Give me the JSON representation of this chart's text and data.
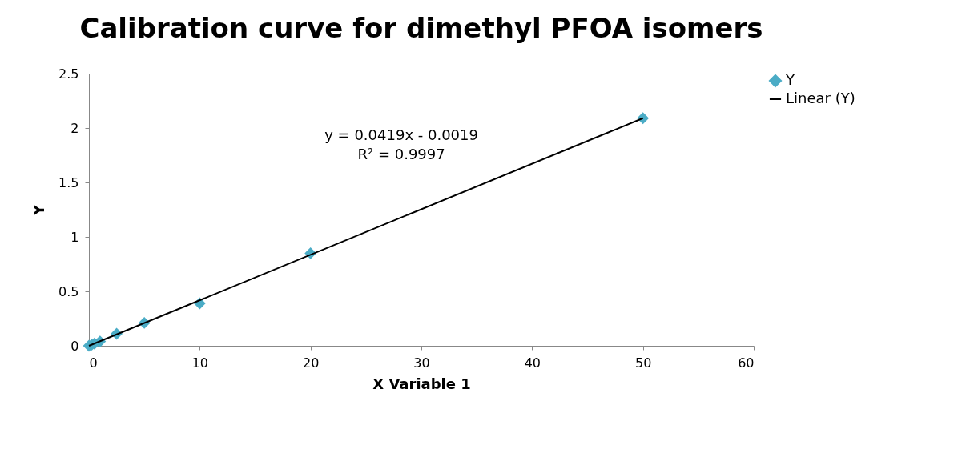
{
  "chart_data": {
    "type": "scatter",
    "title": "Calibration curve for dimethyl PFOA isomers",
    "xlabel": "X Variable 1",
    "ylabel": "Y",
    "xlim": [
      0,
      60
    ],
    "xticks": [
      0,
      10,
      20,
      30,
      40,
      50,
      60
    ],
    "ylim": [
      0,
      2.5
    ],
    "yticks": [
      0,
      0.5,
      1,
      1.5,
      2,
      2.5
    ],
    "grid": false,
    "legend": "right",
    "annotations": [
      "y = 0.0419x - 0.0019",
      "R² = 0.9997"
    ],
    "series": [
      {
        "name": "Y",
        "marker": "diamond",
        "color": "#4bacc6",
        "x": [
          0,
          0.25,
          0.5,
          1,
          2.5,
          5,
          10,
          20,
          50
        ],
        "values": [
          0,
          0.01,
          0.02,
          0.04,
          0.11,
          0.21,
          0.39,
          0.85,
          2.09
        ]
      },
      {
        "name": "Linear (Y)",
        "type": "line",
        "line_style": "solid",
        "color": "#000000",
        "x": [
          0,
          50
        ],
        "values": [
          0,
          2.09
        ]
      }
    ]
  }
}
